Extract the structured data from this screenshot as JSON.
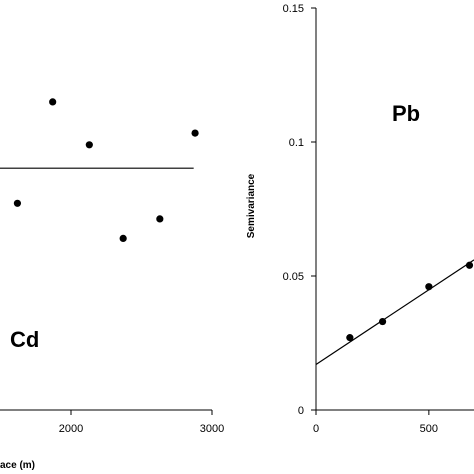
{
  "chart_data": [
    {
      "type": "scatter",
      "panel_label": "Cd",
      "xlabel": "ace (m)",
      "x_ticks": [
        2000,
        3000
      ],
      "x_tick_labels": [
        "2000",
        "3000"
      ],
      "xlim": [
        1000,
        3000
      ],
      "points": [
        {
          "x": 1620,
          "y": 0.53
        },
        {
          "x": 1870,
          "y": 0.79
        },
        {
          "x": 2130,
          "y": 0.68
        },
        {
          "x": 2370,
          "y": 0.44
        },
        {
          "x": 2630,
          "y": 0.49
        },
        {
          "x": 2880,
          "y": 0.71
        }
      ],
      "fit_line": {
        "type": "constant",
        "y": 0.62,
        "x_range": [
          1000,
          2870
        ]
      },
      "ylim": [
        0,
        1
      ]
    },
    {
      "type": "scatter",
      "panel_label": "Pb",
      "ylabel": "Semivariance",
      "y_ticks": [
        0,
        0.05,
        0.1,
        0.15
      ],
      "y_tick_labels": [
        "0",
        "0.05",
        "0.1",
        "0.15"
      ],
      "ylim": [
        0,
        0.15
      ],
      "x_ticks": [
        0,
        500
      ],
      "x_tick_labels": [
        "0",
        "500"
      ],
      "xlim": [
        0,
        700
      ],
      "points": [
        {
          "x": 150,
          "y": 0.027
        },
        {
          "x": 295,
          "y": 0.033
        },
        {
          "x": 500,
          "y": 0.046
        },
        {
          "x": 680,
          "y": 0.054
        }
      ],
      "fit_line": {
        "type": "linear",
        "x0": 0,
        "y0": 0.017,
        "x1": 700,
        "y1": 0.056
      }
    }
  ]
}
